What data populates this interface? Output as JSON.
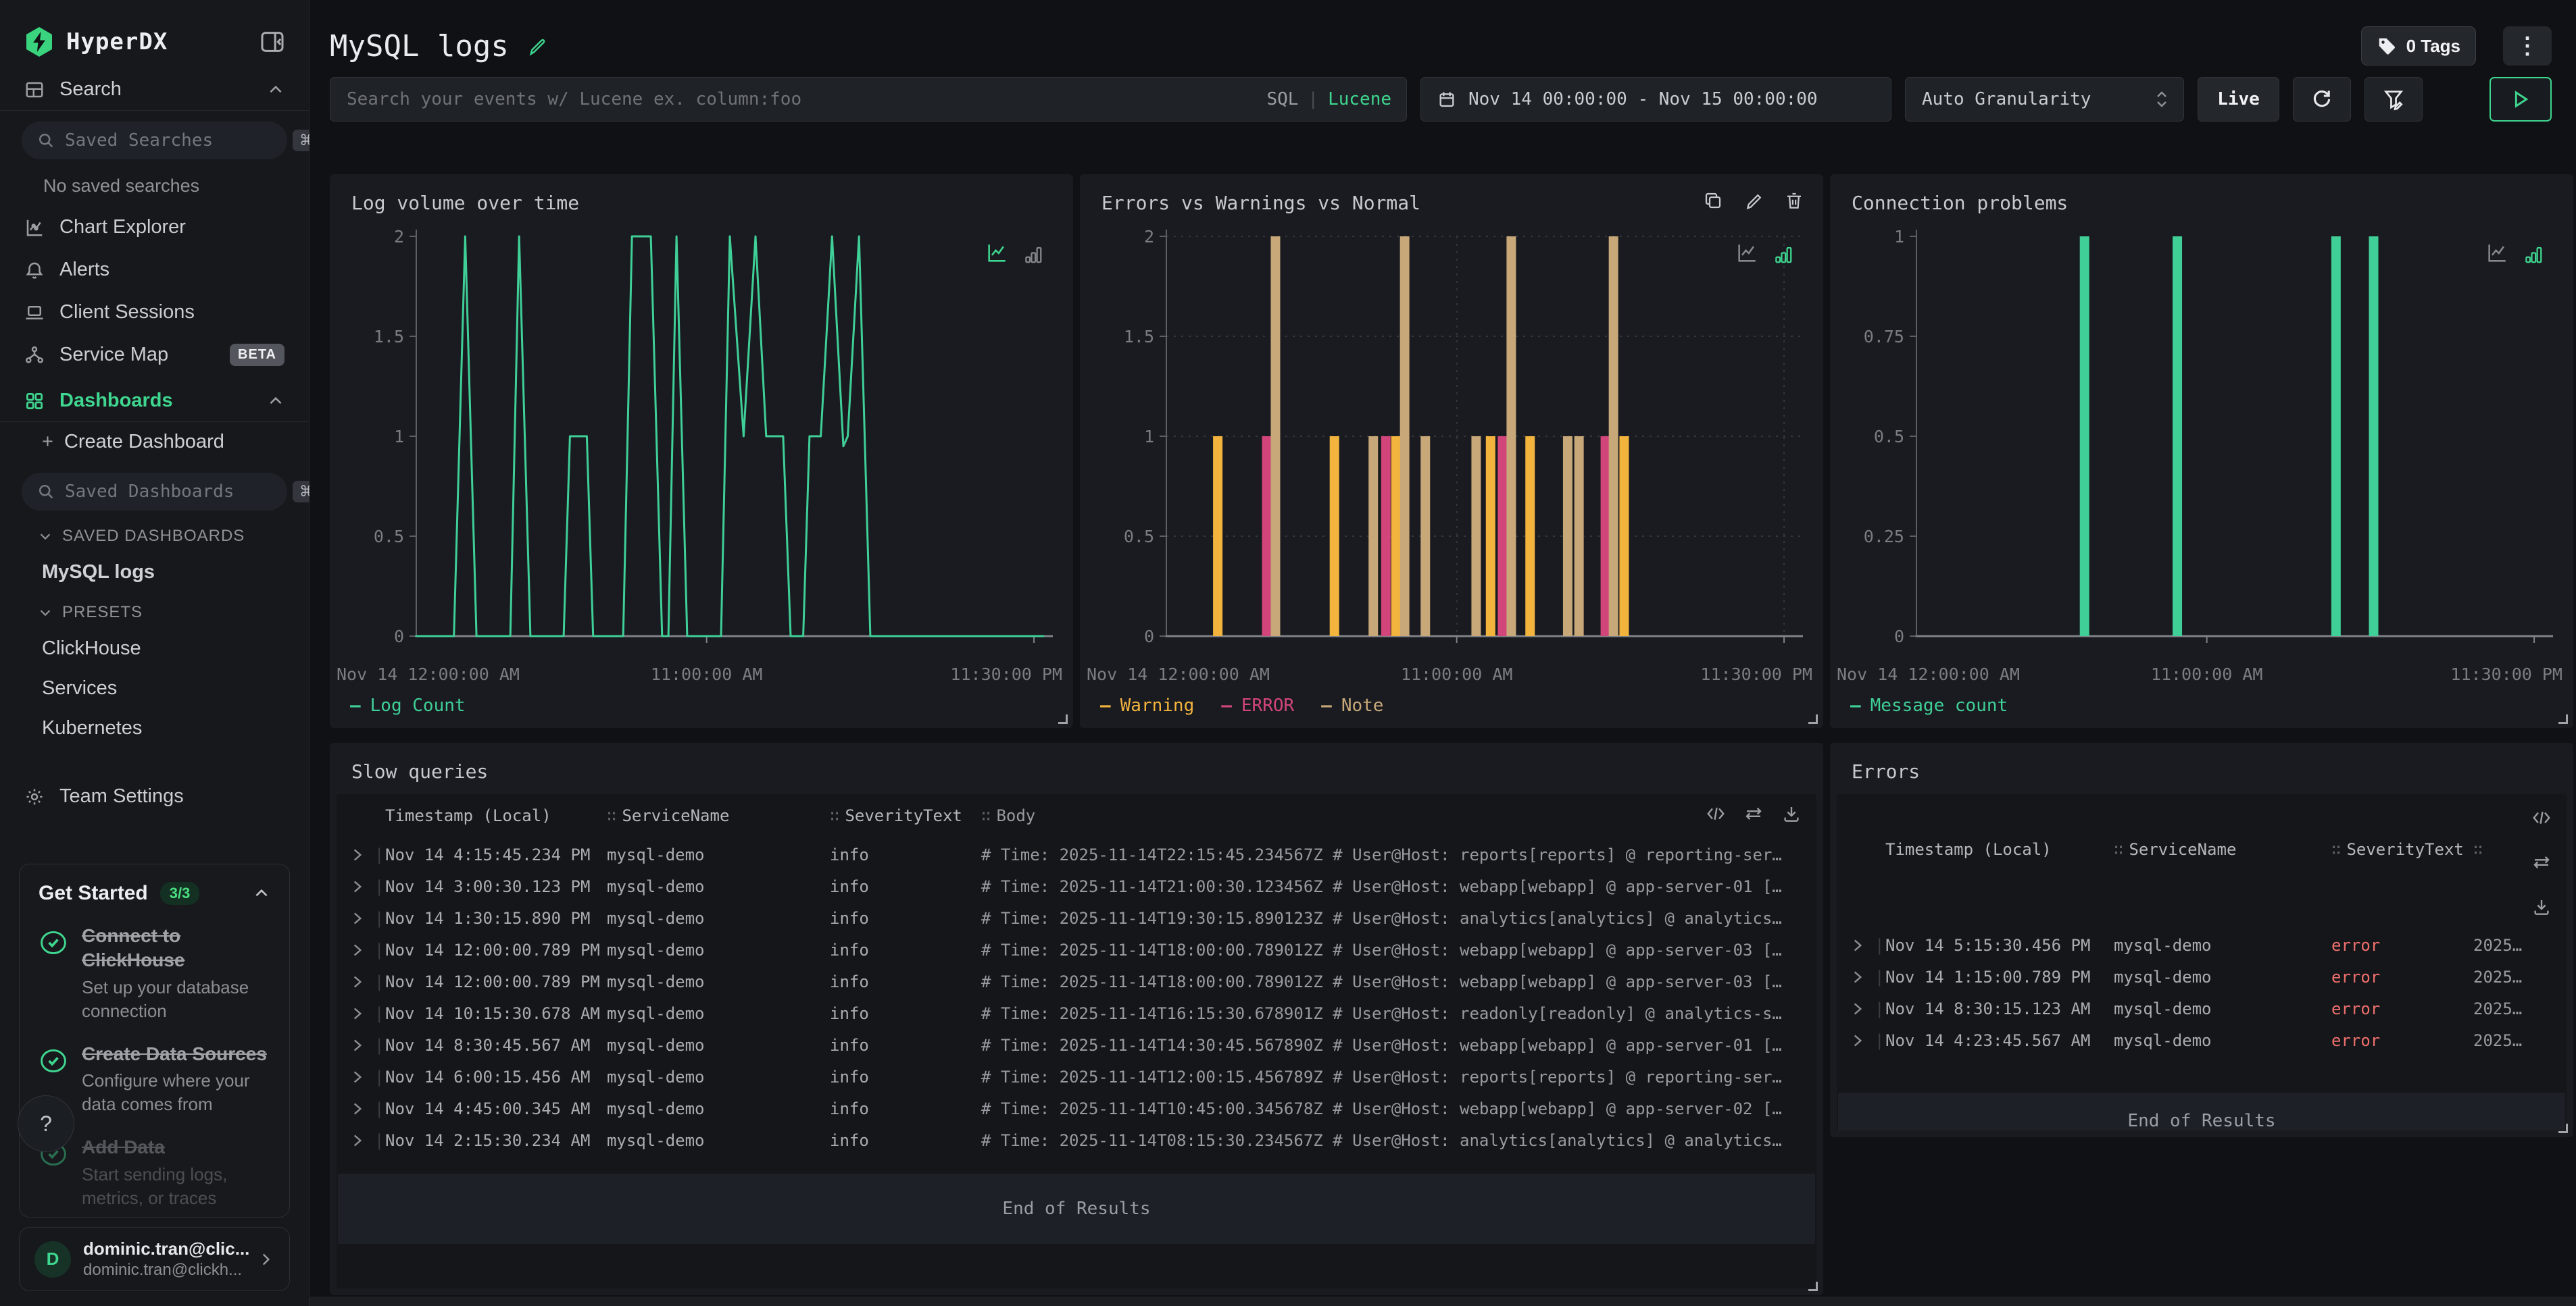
{
  "sidebar": {
    "logo_text": "HyperDX",
    "search_label": "Search",
    "saved_searches_placeholder": "Saved Searches",
    "shortcut": "⌘K",
    "no_saved_searches": "No saved searches",
    "chart_explorer": "Chart Explorer",
    "alerts": "Alerts",
    "client_sessions": "Client Sessions",
    "service_map": "Service Map",
    "beta_badge": "BETA",
    "dashboards": "Dashboards",
    "create_dashboard_plus": "+",
    "create_dashboard": "Create Dashboard",
    "saved_dashboards_placeholder": "Saved Dashboards",
    "saved_dashboards_section": "SAVED DASHBOARDS",
    "mysql_logs_item": "MySQL logs",
    "presets_section": "PRESETS",
    "presets": [
      "ClickHouse",
      "Services",
      "Kubernetes"
    ],
    "team_settings": "Team Settings",
    "get_started": {
      "title": "Get Started",
      "badge": "3/3",
      "items": [
        {
          "title": "Connect to ClickHouse",
          "desc": "Set up your database connection"
        },
        {
          "title": "Create Data Sources",
          "desc": "Configure where your data comes from"
        },
        {
          "title": "Add Data",
          "desc": "Start sending logs, metrics, or traces"
        }
      ]
    },
    "help": "?",
    "user": {
      "initial": "D",
      "name": "dominic.tran@clic...",
      "email": "dominic.tran@clickh..."
    }
  },
  "header": {
    "title": "MySQL logs",
    "tags_label": "0 Tags",
    "kebab": "⋮"
  },
  "toolbar": {
    "search_placeholder": "Search your events w/ Lucene ex. column:foo",
    "sql": "SQL",
    "lang_sep": "|",
    "lucene": "Lucene",
    "date_range": "Nov 14 00:00:00 - Nov 15 00:00:00",
    "granularity": "Auto Granularity",
    "live": "Live"
  },
  "colors": {
    "accent_green": "#3fd68f",
    "chart_green": "#3fcf97",
    "warning_yellow": "#f3b43e",
    "error_pink": "#d2457b",
    "note_tan": "#c8a878",
    "error_text_red": "#ee6f6c"
  },
  "chart_data": [
    {
      "type": "line",
      "title": "Log volume over time",
      "ylim": [
        0,
        2
      ],
      "yticks": [
        2,
        1.5,
        1,
        0.5,
        0
      ],
      "x_labels": [
        "Nov 14 12:00:00 AM",
        "11:00:00 AM",
        "11:30:00 PM"
      ],
      "xlabel": "",
      "ylabel": "",
      "legend": [
        {
          "label": "Log Count",
          "color": "#3fcf97"
        }
      ],
      "color": "#3fcf97",
      "grid": false,
      "points": [
        [
          0,
          0
        ],
        [
          0.06,
          0
        ],
        [
          0.078,
          2
        ],
        [
          0.096,
          0
        ],
        [
          0.15,
          0
        ],
        [
          0.164,
          2
        ],
        [
          0.182,
          0
        ],
        [
          0.235,
          0
        ],
        [
          0.245,
          1
        ],
        [
          0.272,
          1
        ],
        [
          0.282,
          0
        ],
        [
          0.33,
          0
        ],
        [
          0.344,
          2
        ],
        [
          0.374,
          2
        ],
        [
          0.392,
          0
        ],
        [
          0.402,
          0
        ],
        [
          0.415,
          2
        ],
        [
          0.432,
          0
        ],
        [
          0.486,
          0
        ],
        [
          0.5,
          2
        ],
        [
          0.522,
          1
        ],
        [
          0.541,
          2
        ],
        [
          0.558,
          1
        ],
        [
          0.585,
          1
        ],
        [
          0.597,
          0
        ],
        [
          0.617,
          0
        ],
        [
          0.627,
          1
        ],
        [
          0.645,
          1
        ],
        [
          0.663,
          2
        ],
        [
          0.681,
          0.95
        ],
        [
          0.688,
          1
        ],
        [
          0.706,
          2
        ],
        [
          0.724,
          0
        ],
        [
          1,
          0
        ]
      ]
    },
    {
      "type": "bar",
      "title": "Errors vs Warnings vs Normal",
      "ylim": [
        0,
        2
      ],
      "yticks": [
        2,
        1.5,
        1,
        0.5,
        0
      ],
      "x_labels": [
        "Nov 14 12:00:00 AM",
        "11:00:00 AM",
        "11:30:00 PM"
      ],
      "xlabel": "",
      "ylabel": "",
      "legend": [
        {
          "label": "Warning",
          "color": "#f3b43e"
        },
        {
          "label": "ERROR",
          "color": "#d2457b"
        },
        {
          "label": "Note",
          "color": "#c8a878"
        }
      ],
      "series_colors": {
        "Warning": "#f3b43e",
        "ERROR": "#d2457b",
        "Note": "#c8a878"
      },
      "grid": true,
      "vgrid": [
        0.463,
        0.985
      ],
      "bars": [
        {
          "f": 0.082,
          "v": 1,
          "series": "Warning"
        },
        {
          "f": 0.16,
          "v": 1,
          "series": "ERROR"
        },
        {
          "f": 0.174,
          "v": 2,
          "series": "Note"
        },
        {
          "f": 0.268,
          "v": 1,
          "series": "Warning"
        },
        {
          "f": 0.33,
          "v": 1,
          "series": "Note"
        },
        {
          "f": 0.35,
          "v": 1,
          "series": "ERROR"
        },
        {
          "f": 0.366,
          "v": 1,
          "series": "Warning"
        },
        {
          "f": 0.38,
          "v": 2,
          "series": "Note"
        },
        {
          "f": 0.413,
          "v": 1,
          "series": "Note"
        },
        {
          "f": 0.494,
          "v": 1,
          "series": "Note"
        },
        {
          "f": 0.517,
          "v": 1,
          "series": "Warning"
        },
        {
          "f": 0.536,
          "v": 1,
          "series": "ERROR"
        },
        {
          "f": 0.55,
          "v": 2,
          "series": "Note"
        },
        {
          "f": 0.58,
          "v": 1,
          "series": "Warning"
        },
        {
          "f": 0.64,
          "v": 1,
          "series": "Note"
        },
        {
          "f": 0.658,
          "v": 1,
          "series": "Note"
        },
        {
          "f": 0.7,
          "v": 1,
          "series": "ERROR"
        },
        {
          "f": 0.713,
          "v": 2,
          "series": "Note"
        },
        {
          "f": 0.73,
          "v": 1,
          "series": "Warning"
        }
      ]
    },
    {
      "type": "bar",
      "title": "Connection problems",
      "ylim": [
        0,
        1
      ],
      "yticks": [
        1,
        0.75,
        0.5,
        0.25,
        0
      ],
      "x_labels": [
        "Nov 14 12:00:00 AM",
        "11:00:00 AM",
        "11:30:00 PM"
      ],
      "xlabel": "",
      "ylabel": "",
      "legend": [
        {
          "label": "Message count",
          "color": "#3fcf97"
        }
      ],
      "color": "#3fcf97",
      "grid": false,
      "bars": [
        {
          "f": 0.268,
          "v": 1
        },
        {
          "f": 0.416,
          "v": 1
        },
        {
          "f": 0.669,
          "v": 1
        },
        {
          "f": 0.729,
          "v": 1
        }
      ]
    }
  ],
  "slow_queries": {
    "title": "Slow queries",
    "columns": [
      "Timestamp (Local)",
      "ServiceName",
      "SeverityText",
      "Body"
    ],
    "handle_glyph": "∷",
    "rows": [
      {
        "ts": "Nov 14 4:15:45.234 PM",
        "svc": "mysql-demo",
        "sev": "info",
        "body": "# Time: 2025-11-14T22:15:45.234567Z # User@Host: reports[reports] @ reporting-ser…"
      },
      {
        "ts": "Nov 14 3:00:30.123 PM",
        "svc": "mysql-demo",
        "sev": "info",
        "body": "# Time: 2025-11-14T21:00:30.123456Z # User@Host: webapp[webapp] @ app-server-01 […"
      },
      {
        "ts": "Nov 14 1:30:15.890 PM",
        "svc": "mysql-demo",
        "sev": "info",
        "body": "# Time: 2025-11-14T19:30:15.890123Z # User@Host: analytics[analytics] @ analytics…"
      },
      {
        "ts": "Nov 14 12:00:00.789 PM",
        "svc": "mysql-demo",
        "sev": "info",
        "body": "# Time: 2025-11-14T18:00:00.789012Z # User@Host: webapp[webapp] @ app-server-03 […"
      },
      {
        "ts": "Nov 14 12:00:00.789 PM",
        "svc": "mysql-demo",
        "sev": "info",
        "body": "# Time: 2025-11-14T18:00:00.789012Z # User@Host: webapp[webapp] @ app-server-03 […"
      },
      {
        "ts": "Nov 14 10:15:30.678 AM",
        "svc": "mysql-demo",
        "sev": "info",
        "body": "# Time: 2025-11-14T16:15:30.678901Z # User@Host: readonly[readonly] @ analytics-s…"
      },
      {
        "ts": "Nov 14 8:30:45.567 AM",
        "svc": "mysql-demo",
        "sev": "info",
        "body": "# Time: 2025-11-14T14:30:45.567890Z # User@Host: webapp[webapp] @ app-server-01 […"
      },
      {
        "ts": "Nov 14 6:00:15.456 AM",
        "svc": "mysql-demo",
        "sev": "info",
        "body": "# Time: 2025-11-14T12:00:15.456789Z # User@Host: reports[reports] @ reporting-ser…"
      },
      {
        "ts": "Nov 14 4:45:00.345 AM",
        "svc": "mysql-demo",
        "sev": "info",
        "body": "# Time: 2025-11-14T10:45:00.345678Z # User@Host: webapp[webapp] @ app-server-02 […"
      },
      {
        "ts": "Nov 14 2:15:30.234 AM",
        "svc": "mysql-demo",
        "sev": "info",
        "body": "# Time: 2025-11-14T08:15:30.234567Z # User@Host: analytics[analytics] @ analytics…"
      }
    ],
    "end_text": "End of Results"
  },
  "errors_panel": {
    "title": "Errors",
    "columns": [
      "Timestamp (Local)",
      "ServiceName",
      "SeverityText"
    ],
    "handle_glyph": "∷",
    "rows": [
      {
        "ts": "Nov 14 5:15:30.456 PM",
        "svc": "mysql-demo",
        "sev": "error",
        "body": "2025…"
      },
      {
        "ts": "Nov 14 1:15:00.789 PM",
        "svc": "mysql-demo",
        "sev": "error",
        "body": "2025…"
      },
      {
        "ts": "Nov 14 8:30:15.123 AM",
        "svc": "mysql-demo",
        "sev": "error",
        "body": "2025…"
      },
      {
        "ts": "Nov 14 4:23:45.567 AM",
        "svc": "mysql-demo",
        "sev": "error",
        "body": "2025…"
      }
    ],
    "end_text": "End of Results"
  }
}
